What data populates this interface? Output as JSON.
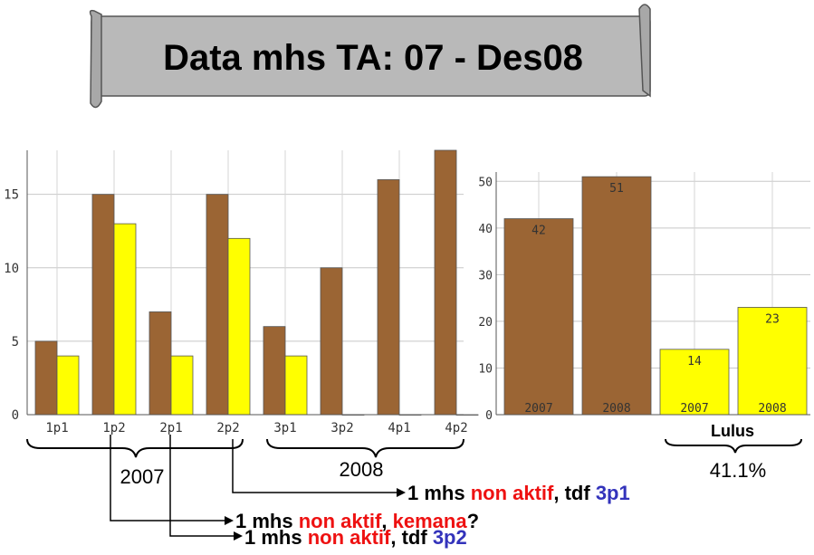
{
  "banner": {
    "title": "Data mhs TA: 07 - Des08"
  },
  "colors": {
    "brown": "#9B6534",
    "yellow": "#FFFF00",
    "red": "#EE1111",
    "blue": "#3333BB",
    "banner_fill": "#B9B9B9"
  },
  "chart_data": [
    {
      "type": "bar",
      "categories": [
        "1p1",
        "1p2",
        "2p1",
        "2p2",
        "3p1",
        "3p2",
        "4p1",
        "4p2"
      ],
      "series": [
        {
          "values": [
            5,
            15,
            7,
            15,
            6,
            10,
            16,
            18
          ]
        },
        {
          "values": [
            4,
            13,
            4,
            12,
            4,
            0,
            0,
            0
          ]
        }
      ],
      "ylim": [
        0,
        18
      ],
      "yticks": [
        0,
        5,
        10,
        15
      ],
      "grid": true,
      "groups": [
        {
          "label": "2007",
          "categories": [
            "1p1",
            "1p2",
            "2p1",
            "2p2"
          ]
        },
        {
          "label": "2008",
          "categories": [
            "3p1",
            "3p2",
            "4p1",
            "4p2"
          ]
        }
      ]
    },
    {
      "type": "bar",
      "categories": [
        "2007",
        "2008",
        "2007",
        "2008"
      ],
      "values": [
        42,
        51,
        14,
        23
      ],
      "data_labels": [
        "42",
        "51",
        "14",
        "23"
      ],
      "bar_colors": [
        "#9B6534",
        "#9B6534",
        "#FFFF00",
        "#FFFF00"
      ],
      "ylim": [
        0,
        52
      ],
      "yticks": [
        0,
        10,
        20,
        30,
        40,
        50
      ],
      "grid": true,
      "group_label": "Lulus",
      "group_note": "41.1%"
    }
  ],
  "annotations": [
    {
      "parts": [
        {
          "text": "1 mhs ",
          "color": "#000000"
        },
        {
          "text": "non aktif",
          "color": "#EE1111"
        },
        {
          "text": ", tdf ",
          "color": "#000000"
        },
        {
          "text": "3p1",
          "color": "#3333BB"
        }
      ]
    },
    {
      "parts": [
        {
          "text": "1 mhs ",
          "color": "#000000"
        },
        {
          "text": "non aktif",
          "color": "#EE1111"
        },
        {
          "text": ", ",
          "color": "#000000"
        },
        {
          "text": "kemana",
          "color": "#EE1111"
        },
        {
          "text": "?",
          "color": "#000000"
        }
      ]
    },
    {
      "parts": [
        {
          "text": "1 mhs ",
          "color": "#000000"
        },
        {
          "text": "non aktif",
          "color": "#EE1111"
        },
        {
          "text": ", tdf ",
          "color": "#000000"
        },
        {
          "text": "3p2",
          "color": "#3333BB"
        }
      ]
    }
  ]
}
